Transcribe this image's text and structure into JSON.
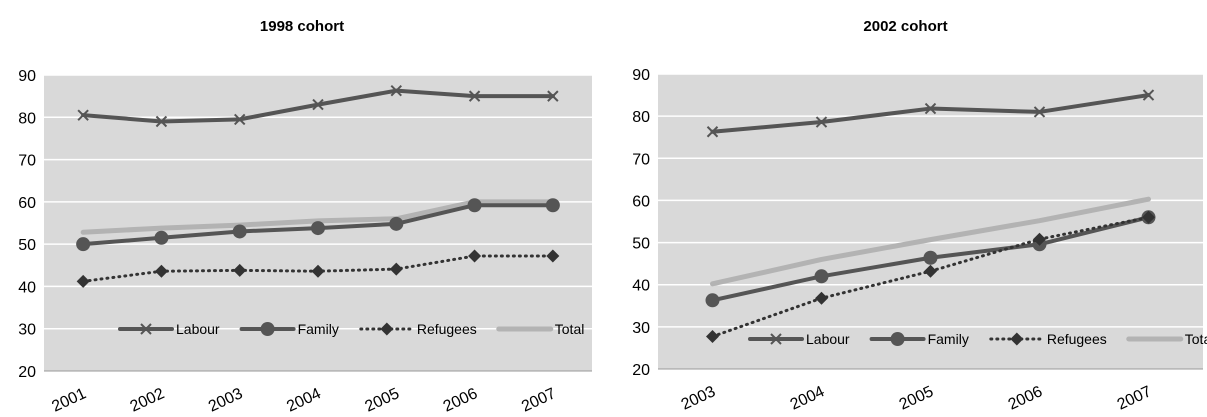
{
  "chart_data": [
    {
      "type": "line",
      "title": "1998 cohort",
      "categories": [
        "2001",
        "2002",
        "2003",
        "2004",
        "2005",
        "2006",
        "2007"
      ],
      "ylim": [
        20,
        90
      ],
      "yticks": [
        20,
        30,
        40,
        50,
        60,
        70,
        80,
        90
      ],
      "grid": true,
      "legend": "bottom-inside",
      "series": [
        {
          "name": "Labour",
          "marker": "x",
          "style": "solid",
          "color": "#555555",
          "values": [
            80.5,
            79,
            79.5,
            83,
            86.3,
            85,
            85
          ]
        },
        {
          "name": "Family",
          "marker": "circle",
          "style": "solid",
          "color": "#555555",
          "values": [
            50,
            51.5,
            53,
            53.8,
            54.8,
            59.2,
            59.2
          ]
        },
        {
          "name": "Refugees",
          "marker": "diamond",
          "style": "dotted",
          "color": "#333333",
          "values": [
            41.2,
            43.6,
            43.8,
            43.6,
            44.1,
            47.2,
            47.2
          ]
        },
        {
          "name": "Total",
          "marker": "none",
          "style": "solid",
          "color": "#b3b3b3",
          "values": [
            52.8,
            53.8,
            54.5,
            55.5,
            56,
            60,
            60
          ]
        }
      ]
    },
    {
      "type": "line",
      "title": "2002 cohort",
      "categories": [
        "2003",
        "2004",
        "2005",
        "2006",
        "2007"
      ],
      "ylim": [
        20,
        90
      ],
      "yticks": [
        20,
        30,
        40,
        50,
        60,
        70,
        80,
        90
      ],
      "grid": true,
      "legend": "bottom-inside",
      "series": [
        {
          "name": "Labour",
          "marker": "x",
          "style": "solid",
          "color": "#555555",
          "values": [
            76.3,
            78.6,
            81.8,
            81,
            85
          ]
        },
        {
          "name": "Family",
          "marker": "circle",
          "style": "solid",
          "color": "#555555",
          "values": [
            36.3,
            42,
            46.4,
            49.6,
            56
          ]
        },
        {
          "name": "Refugees",
          "marker": "diamond",
          "style": "dotted",
          "color": "#333333",
          "values": [
            27.7,
            36.8,
            43.2,
            50.8,
            56
          ]
        },
        {
          "name": "Total",
          "marker": "none",
          "style": "solid",
          "color": "#b3b3b3",
          "values": [
            40.2,
            46,
            50.7,
            55.2,
            60.3
          ]
        }
      ]
    }
  ]
}
